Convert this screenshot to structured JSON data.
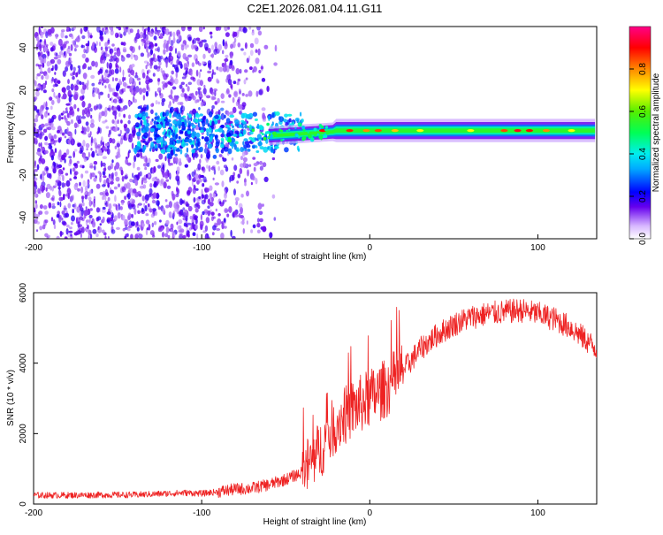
{
  "title": "C2E1.2026.081.04.11.G11",
  "chart_data": [
    {
      "type": "heatmap",
      "xlabel": "Height of straight line (km)",
      "ylabel": "Frequency (Hz)",
      "xlim": [
        -200,
        135
      ],
      "ylim": [
        -50,
        50
      ],
      "x_ticks": [
        "-200",
        "-100",
        "0",
        "100"
      ],
      "y_ticks": [
        "-40",
        "-20",
        "0",
        "20",
        "40"
      ],
      "colorbar": {
        "label": "Normalized spectral amplitude",
        "range": [
          0.0,
          1.0
        ],
        "ticks": [
          "0.0",
          "0.2",
          "0.4",
          "0.6",
          "0.8"
        ]
      },
      "features": [
        {
          "x_range": [
            -200,
            -60
          ],
          "description_level": "diffuse low-amplitude noise across all frequencies",
          "amplitude": 0.2
        },
        {
          "x_range": [
            -60,
            -20
          ],
          "freq_center": -1,
          "amplitude": 0.45
        },
        {
          "x_range": [
            -20,
            135
          ],
          "freq_center": 1,
          "freq_halfwidth": 2,
          "amplitude": 0.85
        }
      ],
      "grid": false
    },
    {
      "type": "line",
      "xlabel": "Height of straight line (km)",
      "ylabel": "SNR (10 * v/v)",
      "xlim": [
        -200,
        135
      ],
      "ylim": [
        0,
        6000
      ],
      "x_ticks": [
        "-200",
        "-100",
        "0",
        "100"
      ],
      "y_ticks": [
        "0",
        "2000",
        "4000",
        "6000"
      ],
      "series": [
        {
          "color": "#ee2222",
          "x": [
            -200,
            -180,
            -160,
            -140,
            -120,
            -110,
            -100,
            -90,
            -80,
            -70,
            -60,
            -50,
            -40,
            -30,
            -20,
            -10,
            0,
            10,
            20,
            30,
            40,
            50,
            60,
            70,
            80,
            90,
            100,
            110,
            120,
            130,
            135
          ],
          "y": [
            250,
            250,
            260,
            260,
            300,
            320,
            300,
            350,
            420,
            450,
            550,
            700,
            900,
            1500,
            2300,
            2700,
            3000,
            3300,
            3800,
            4400,
            4800,
            5100,
            5300,
            5400,
            5450,
            5500,
            5400,
            5250,
            5000,
            4600,
            4400
          ]
        }
      ],
      "grid": false
    }
  ]
}
